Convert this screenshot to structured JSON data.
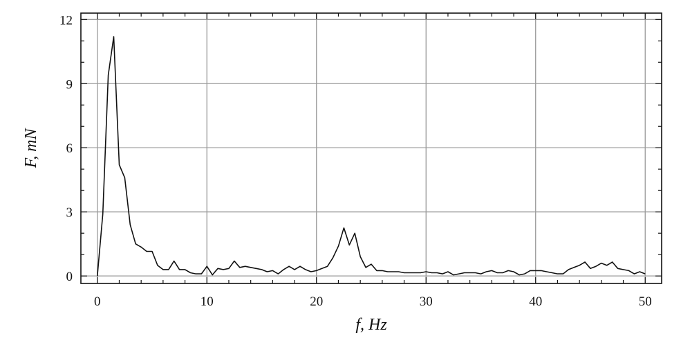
{
  "chart_data": {
    "type": "line",
    "xlabel": "f, Hz",
    "ylabel": "F, mN",
    "xlim": [
      -1.5,
      51.5
    ],
    "ylim": [
      -0.35,
      12.3
    ],
    "x_ticks": [
      0,
      10,
      20,
      30,
      40,
      50
    ],
    "y_ticks": [
      0,
      3,
      6,
      9,
      12
    ],
    "x_minor_step": 2,
    "y_minor_step": 1,
    "grid": true,
    "series": [
      {
        "x": [
          0,
          0.5,
          1.0,
          1.5,
          2.0,
          2.5,
          3.0,
          3.5,
          4.0,
          4.5,
          5.0,
          5.5,
          6.0,
          6.5,
          7.0,
          7.5,
          8.0,
          8.5,
          9.0,
          9.5,
          10.0,
          10.5,
          11.0,
          11.5,
          12.0,
          12.5,
          13.0,
          13.5,
          14.0,
          14.5,
          15.0,
          15.5,
          16.0,
          16.5,
          17.0,
          17.5,
          18.0,
          18.5,
          19.0,
          19.5,
          20.0,
          20.5,
          21.0,
          21.5,
          22.0,
          22.5,
          23.0,
          23.5,
          24.0,
          24.5,
          25.0,
          25.5,
          26.0,
          26.5,
          27.0,
          27.5,
          28.0,
          28.5,
          29.0,
          29.5,
          30.0,
          30.5,
          31.0,
          31.5,
          32.0,
          32.5,
          33.0,
          33.5,
          34.0,
          34.5,
          35.0,
          35.5,
          36.0,
          36.5,
          37.0,
          37.5,
          38.0,
          38.5,
          39.0,
          39.5,
          40.0,
          40.5,
          41.0,
          41.5,
          42.0,
          42.5,
          43.0,
          43.5,
          44.0,
          44.5,
          45.0,
          45.5,
          46.0,
          46.5,
          47.0,
          47.5,
          48.0,
          48.5,
          49.0,
          49.5,
          50.0
        ],
        "values": [
          0.0,
          2.9,
          9.4,
          11.2,
          5.2,
          4.6,
          2.4,
          1.5,
          1.35,
          1.15,
          1.15,
          0.5,
          0.3,
          0.3,
          0.7,
          0.3,
          0.3,
          0.15,
          0.1,
          0.1,
          0.45,
          0.05,
          0.35,
          0.3,
          0.35,
          0.7,
          0.4,
          0.45,
          0.4,
          0.35,
          0.3,
          0.2,
          0.25,
          0.1,
          0.3,
          0.45,
          0.3,
          0.45,
          0.3,
          0.2,
          0.25,
          0.35,
          0.45,
          0.85,
          1.4,
          2.25,
          1.45,
          2.0,
          0.9,
          0.4,
          0.55,
          0.25,
          0.25,
          0.2,
          0.2,
          0.2,
          0.15,
          0.15,
          0.15,
          0.15,
          0.2,
          0.15,
          0.15,
          0.1,
          0.2,
          0.05,
          0.1,
          0.15,
          0.15,
          0.15,
          0.1,
          0.2,
          0.25,
          0.15,
          0.15,
          0.25,
          0.2,
          0.05,
          0.1,
          0.25,
          0.25,
          0.25,
          0.2,
          0.15,
          0.1,
          0.1,
          0.3,
          0.4,
          0.5,
          0.65,
          0.35,
          0.45,
          0.6,
          0.5,
          0.65,
          0.35,
          0.3,
          0.25,
          0.1,
          0.2,
          0.1
        ]
      }
    ]
  }
}
